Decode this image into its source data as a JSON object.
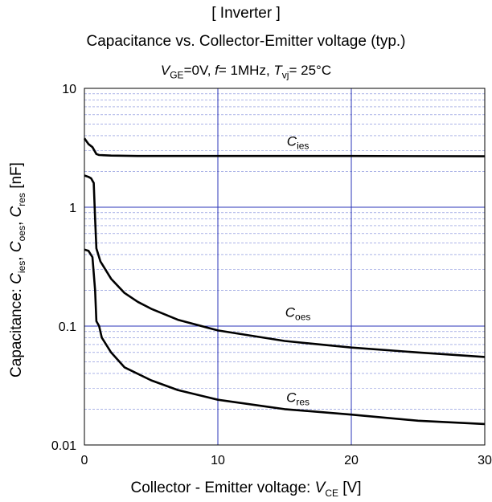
{
  "page": {
    "title": "[ Inverter ]",
    "subtitle": "Capacitance  vs.  Collector-Emitter voltage  (typ.)",
    "conditions": {
      "vge_sym": "V",
      "vge_sub": "GE",
      "vge_val": "=0V,  ",
      "f_sym": "f",
      "f_val": "= 1MHz,  ",
      "t_sym": "T",
      "t_sub": "vj",
      "t_val": "= 25°C"
    },
    "xlabel": {
      "prefix": "Collector - Emitter voltage:  ",
      "sym": "V",
      "sub": "CE",
      "suffix": " [V]"
    },
    "ylabel": {
      "prefix": "Capacitance:  ",
      "c": "C",
      "s1": "ies",
      "sep1": ",  ",
      "s2": "oes",
      "sep2": ",  ",
      "s3": "res",
      "suffix": " [nF]"
    }
  },
  "chart_data": {
    "type": "line",
    "x_scale": "linear",
    "y_scale": "log",
    "xlim": [
      0,
      30
    ],
    "ylim": [
      0.01,
      10
    ],
    "x_ticks": [
      "0",
      "10",
      "20",
      "30"
    ],
    "y_ticks": [
      "0.01",
      "0.1",
      "1",
      "10"
    ],
    "grid": {
      "x_major": true,
      "y_major": true,
      "y_minor": true
    },
    "colors": {
      "grid_major": "#2b35b8",
      "grid_minor": "#7a86d8",
      "line": "#000000"
    },
    "series": [
      {
        "name": "ies",
        "x": [
          0,
          0.3,
          0.6,
          0.9,
          1.1,
          2,
          4,
          10,
          20,
          30
        ],
        "y": [
          3.8,
          3.4,
          3.2,
          2.8,
          2.75,
          2.72,
          2.7,
          2.7,
          2.7,
          2.68
        ]
      },
      {
        "name": "oes",
        "x": [
          0,
          0.3,
          0.5,
          0.7,
          0.8,
          0.9,
          1.2,
          2,
          3,
          4,
          5,
          7,
          10,
          15,
          20,
          25,
          30
        ],
        "y": [
          1.85,
          1.8,
          1.75,
          1.6,
          0.8,
          0.45,
          0.35,
          0.25,
          0.19,
          0.16,
          0.14,
          0.113,
          0.092,
          0.075,
          0.066,
          0.06,
          0.055
        ]
      },
      {
        "name": "res",
        "x": [
          0,
          0.3,
          0.6,
          0.8,
          0.9,
          1.1,
          1.3,
          2,
          3,
          5,
          7,
          10,
          15,
          20,
          25,
          30
        ],
        "y": [
          0.44,
          0.43,
          0.38,
          0.2,
          0.11,
          0.1,
          0.08,
          0.06,
          0.045,
          0.035,
          0.029,
          0.024,
          0.02,
          0.018,
          0.016,
          0.015
        ]
      }
    ],
    "curve_labels": [
      {
        "c": "C",
        "sub": "ies",
        "x": 16,
        "y": 3.3
      },
      {
        "c": "C",
        "sub": "oes",
        "x": 16,
        "y": 0.12
      },
      {
        "c": "C",
        "sub": "res",
        "x": 16,
        "y": 0.023
      }
    ]
  }
}
